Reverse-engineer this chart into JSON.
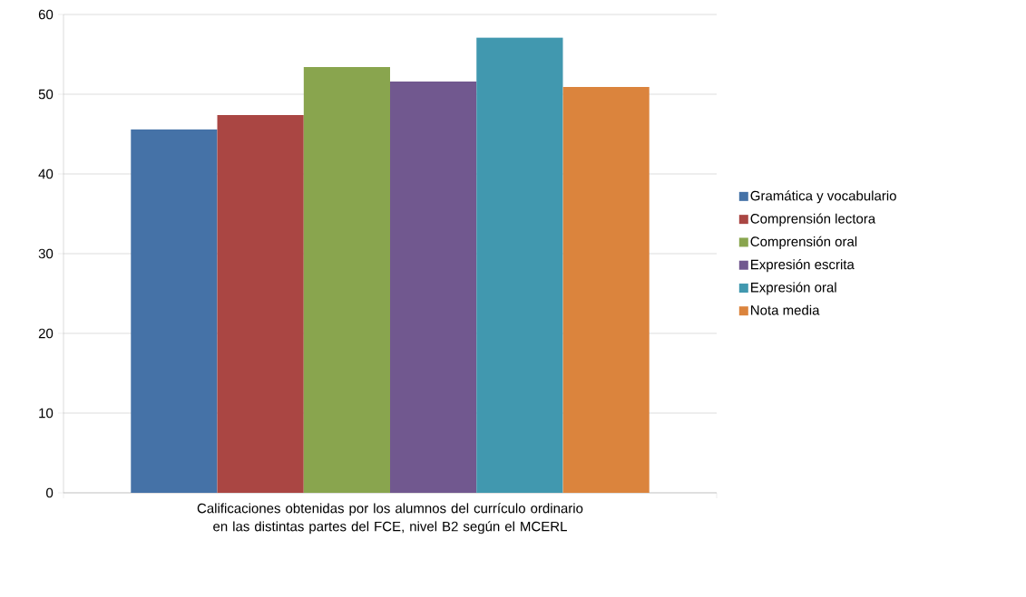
{
  "chart_data": {
    "type": "bar",
    "categories": [
      "Calificaciones obtenidas por los alumnos del currículo ordinario en las distintas partes del FCE, nivel B2 según el MCERL"
    ],
    "series": [
      {
        "name": "Gramática y vocabulario",
        "color": "#4572a7",
        "values": [
          45.6
        ]
      },
      {
        "name": "Comprensión lectora",
        "color": "#aa4643",
        "values": [
          47.4
        ]
      },
      {
        "name": "Comprensión oral",
        "color": "#89a54e",
        "values": [
          53.4
        ]
      },
      {
        "name": "Expresión escrita",
        "color": "#71588f",
        "values": [
          51.6
        ]
      },
      {
        "name": "Expresión oral",
        "color": "#4198af",
        "values": [
          57.1
        ]
      },
      {
        "name": "Nota media",
        "color": "#db843d",
        "values": [
          50.9
        ]
      }
    ],
    "ylim": [
      0,
      60
    ],
    "yticks": [
      0,
      10,
      20,
      30,
      40,
      50,
      60
    ],
    "grid": "y",
    "legend": "right"
  }
}
